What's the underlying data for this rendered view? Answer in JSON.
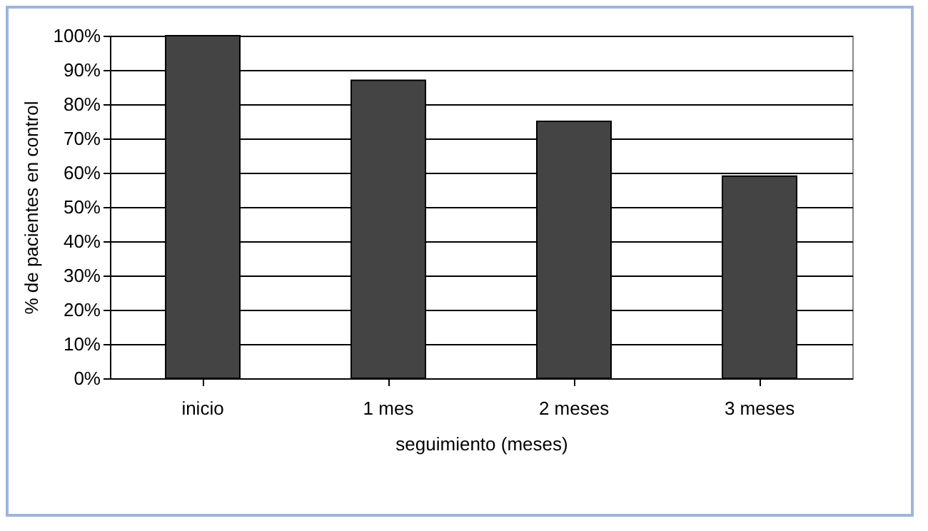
{
  "chart_data": {
    "type": "bar",
    "xlabel": "seguimiento (meses)",
    "ylabel": "% de pacientes en control",
    "categories": [
      "inicio",
      "1 mes",
      "2 meses",
      "3 meses"
    ],
    "values": [
      100,
      87,
      75,
      59
    ],
    "color": "#444444",
    "ylim": [
      0,
      100
    ],
    "yticks": [
      {
        "value": 0,
        "label": "0%"
      },
      {
        "value": 10,
        "label": "10%"
      },
      {
        "value": 20,
        "label": "20%"
      },
      {
        "value": 30,
        "label": "30%"
      },
      {
        "value": 40,
        "label": "40%"
      },
      {
        "value": 50,
        "label": "50%"
      },
      {
        "value": 60,
        "label": "60%"
      },
      {
        "value": 70,
        "label": "70%"
      },
      {
        "value": 80,
        "label": "80%"
      },
      {
        "value": 90,
        "label": "90%"
      },
      {
        "value": 100,
        "label": "100%"
      }
    ],
    "grid": "y"
  }
}
